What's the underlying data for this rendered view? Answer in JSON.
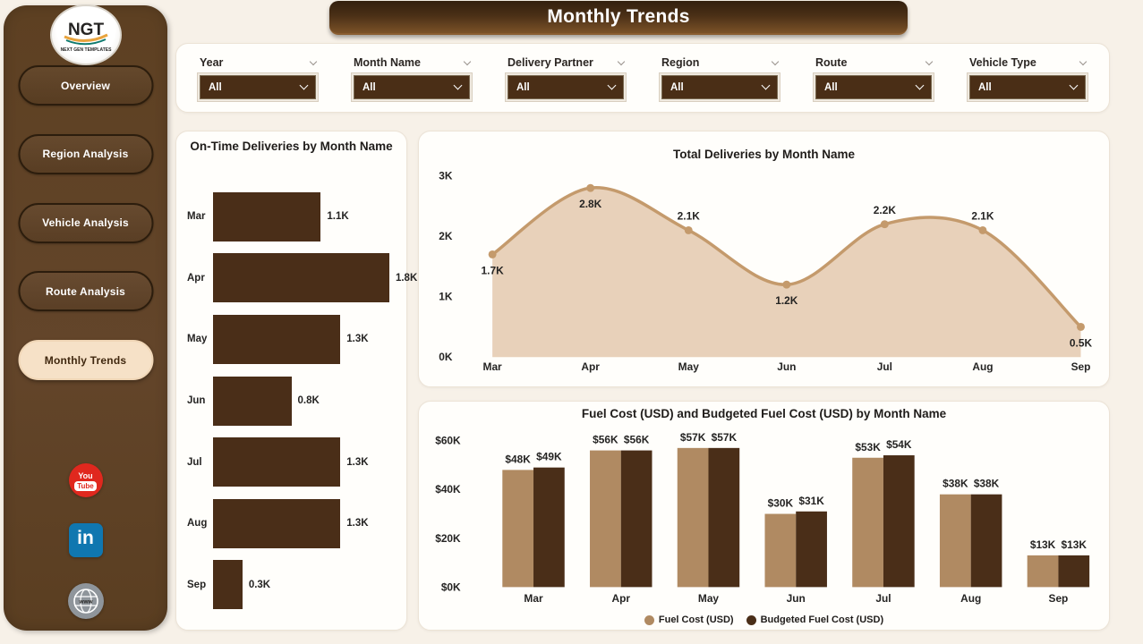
{
  "title_banner": "Monthly Trends",
  "logo": {
    "text": "NGT",
    "subtext": "NEXT GEN TEMPLATES"
  },
  "sidebar": {
    "items": [
      {
        "label": "Overview",
        "active": false
      },
      {
        "label": "Region Analysis",
        "active": false
      },
      {
        "label": "Vehicle Analysis",
        "active": false
      },
      {
        "label": "Route Analysis",
        "active": false
      },
      {
        "label": "Monthly Trends",
        "active": true
      }
    ],
    "social": [
      {
        "name": "youtube",
        "you": "You",
        "tube": "Tube"
      },
      {
        "name": "linkedin",
        "text": "in"
      },
      {
        "name": "website",
        "text": "www"
      }
    ]
  },
  "filters": [
    {
      "label": "Year",
      "value": "All"
    },
    {
      "label": "Month Name",
      "value": "All"
    },
    {
      "label": "Delivery Partner",
      "value": "All"
    },
    {
      "label": "Region",
      "value": "All"
    },
    {
      "label": "Route",
      "value": "All"
    },
    {
      "label": "Vehicle Type",
      "value": "All"
    }
  ],
  "theme": {
    "page_bg": "#f7f1e8",
    "sidebar_brown": "#5d4022",
    "dark_brown": "#4a2e18",
    "tan": "#b08a62",
    "area_fill": "#e8d1ba",
    "area_line": "#c49a6c",
    "active_pill": "#f6e1c7"
  },
  "chart_data": [
    {
      "type": "bar",
      "orientation": "horizontal",
      "title": "On-Time Deliveries by Month Name",
      "categories": [
        "Mar",
        "Apr",
        "May",
        "Jun",
        "Jul",
        "Aug",
        "Sep"
      ],
      "values": [
        1.1,
        1.8,
        1.3,
        0.8,
        1.3,
        1.3,
        0.3
      ],
      "labels": [
        "1.1K",
        "1.8K",
        "1.3K",
        "0.8K",
        "1.3K",
        "1.3K",
        "0.3K"
      ],
      "xlim": [
        0,
        1.85
      ],
      "bar_color": "#4a2e18",
      "grid": false
    },
    {
      "type": "area",
      "title": "Total Deliveries by Month Name",
      "categories": [
        "Mar",
        "Apr",
        "May",
        "Jun",
        "Jul",
        "Aug",
        "Sep"
      ],
      "values": [
        1.7,
        2.8,
        2.1,
        1.2,
        2.2,
        2.1,
        0.5
      ],
      "labels": [
        "1.7K",
        "2.8K",
        "2.1K",
        "1.2K",
        "2.2K",
        "2.1K",
        "0.5K"
      ],
      "label_placement": [
        "below",
        "below",
        "above",
        "below",
        "above",
        "above",
        "below"
      ],
      "yticks": [
        0,
        1,
        2,
        3
      ],
      "ytick_labels": [
        "0K",
        "1K",
        "2K",
        "3K"
      ],
      "ylim": [
        0,
        3.2
      ],
      "line_color": "#c49a6c",
      "fill_color": "#e8d1ba",
      "grid": false
    },
    {
      "type": "bar",
      "title": "Fuel Cost (USD) and Budgeted Fuel Cost (USD) by Month Name",
      "categories": [
        "Mar",
        "Apr",
        "May",
        "Jun",
        "Jul",
        "Aug",
        "Sep"
      ],
      "series": [
        {
          "name": "Fuel Cost (USD)",
          "color": "#b08a62",
          "values": [
            48,
            56,
            57,
            30,
            53,
            38,
            13
          ],
          "labels": [
            "$48K",
            "$56K",
            "$57K",
            "$30K",
            "$53K",
            "$38K",
            "$13K"
          ]
        },
        {
          "name": "Budgeted Fuel Cost (USD)",
          "color": "#4a2e18",
          "values": [
            49,
            56,
            57,
            31,
            54,
            38,
            13
          ],
          "labels": [
            "$49K",
            "$56K",
            "$57K",
            "$31K",
            "$54K",
            "$38K",
            "$13K"
          ]
        }
      ],
      "yticks": [
        0,
        20,
        40,
        60
      ],
      "ytick_labels": [
        "$0K",
        "$20K",
        "$40K",
        "$60K"
      ],
      "ylim": [
        0,
        66
      ],
      "legend_position": "bottom",
      "grid": false
    }
  ]
}
